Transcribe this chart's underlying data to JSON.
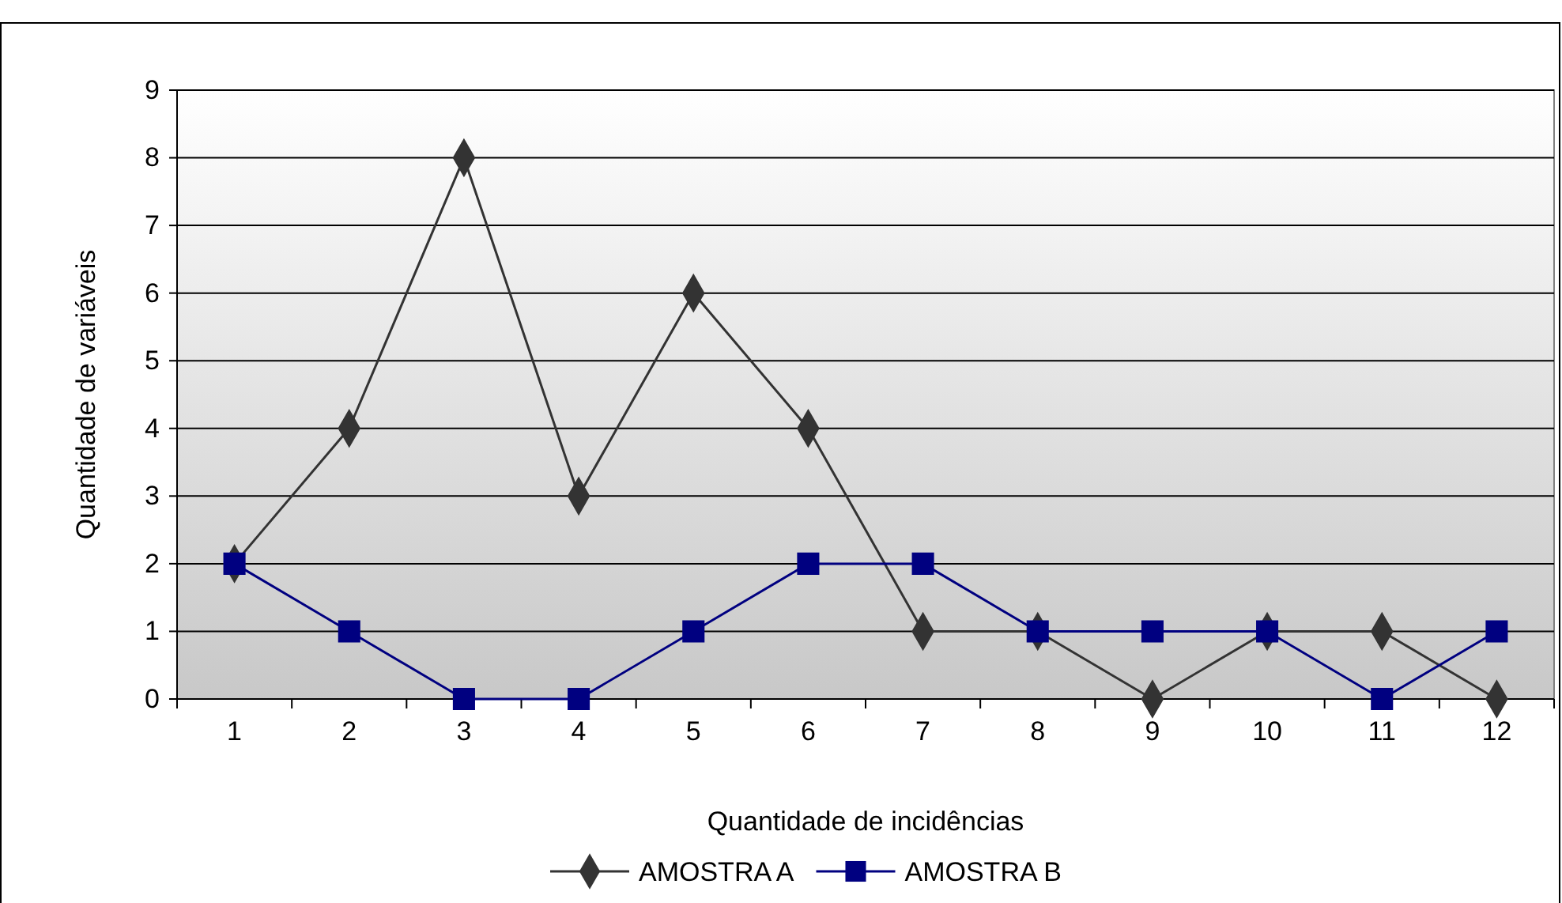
{
  "chart_data": {
    "type": "line",
    "xlabel": "Quantidade de incidências",
    "ylabel": "Quantidade de variáveis",
    "categories": [
      "1",
      "2",
      "3",
      "4",
      "5",
      "6",
      "7",
      "8",
      "9",
      "10",
      "11",
      "12"
    ],
    "series": [
      {
        "name": "AMOSTRA A",
        "color": "#333333",
        "marker": "diamond",
        "values": [
          2,
          4,
          8,
          3,
          6,
          4,
          1,
          1,
          0,
          1,
          1,
          0
        ]
      },
      {
        "name": "AMOSTRA B",
        "color": "#000080",
        "marker": "square",
        "values": [
          2,
          1,
          0,
          0,
          1,
          2,
          2,
          1,
          1,
          1,
          0,
          1
        ]
      }
    ],
    "ylim": [
      0,
      9
    ],
    "yticks": [
      0,
      1,
      2,
      3,
      4,
      5,
      6,
      7,
      8,
      9
    ],
    "grid": "y",
    "legend": "bottom"
  }
}
